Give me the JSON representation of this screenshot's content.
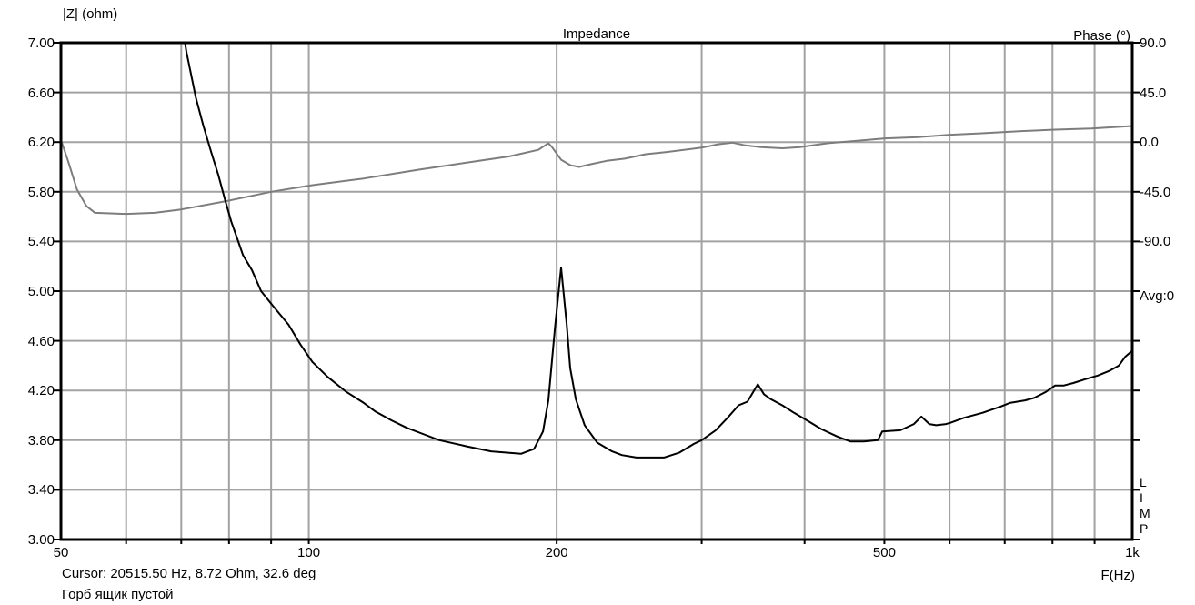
{
  "chart_data": {
    "type": "line",
    "title": "Impedance",
    "left_axis": {
      "label": "|Z| (ohm)",
      "min": 3.0,
      "max": 7.0,
      "tick_step": 0.4,
      "ticks": [
        "7.00",
        "6.60",
        "6.20",
        "5.80",
        "5.40",
        "5.00",
        "4.60",
        "4.20",
        "3.80",
        "3.40",
        "3.00"
      ]
    },
    "right_axis": {
      "label": "Phase (°)",
      "ticks": [
        "90.0",
        "45.0",
        "0.0",
        "-45.0",
        "-90.0"
      ],
      "deg_per_division": 45,
      "zero_deg_at_ohm": 6.2,
      "avg_label": "Avg:0"
    },
    "x_axis": {
      "label": "F(Hz)",
      "scale": "log",
      "min_hz": 50,
      "max_hz": 1000,
      "tick_labels": [
        {
          "hz": 50,
          "text": "50"
        },
        {
          "hz": 100,
          "text": "100"
        },
        {
          "hz": 200,
          "text": "200"
        },
        {
          "hz": 500,
          "text": "500"
        },
        {
          "hz": 1000,
          "text": "1k"
        }
      ],
      "gridline_hz": [
        60,
        70,
        80,
        90,
        100,
        200,
        300,
        400,
        500,
        600,
        700,
        800,
        900
      ]
    },
    "series": [
      {
        "name": "impedance_magnitude_ohm",
        "units": "ohm",
        "color": "#000000",
        "points": [
          [
            70.3,
            7.12
          ],
          [
            71,
            6.93
          ],
          [
            72.9,
            6.56
          ],
          [
            74.4,
            6.34
          ],
          [
            76.1,
            6.12
          ],
          [
            77.7,
            5.93
          ],
          [
            79,
            5.75
          ],
          [
            80.5,
            5.56
          ],
          [
            82,
            5.41
          ],
          [
            83.2,
            5.29
          ],
          [
            85.3,
            5.17
          ],
          [
            87.5,
            5.0
          ],
          [
            90.5,
            4.88
          ],
          [
            94.5,
            4.73
          ],
          [
            97.7,
            4.57
          ],
          [
            101,
            4.43
          ],
          [
            105.4,
            4.31
          ],
          [
            111,
            4.19
          ],
          [
            116.6,
            4.1
          ],
          [
            120.5,
            4.03
          ],
          [
            126,
            3.96
          ],
          [
            131.5,
            3.9
          ],
          [
            137.6,
            3.85
          ],
          [
            144,
            3.8
          ],
          [
            155.5,
            3.75
          ],
          [
            166.5,
            3.71
          ],
          [
            181,
            3.69
          ],
          [
            187.7,
            3.73
          ],
          [
            192.5,
            3.87
          ],
          [
            195.4,
            4.12
          ],
          [
            199,
            4.7
          ],
          [
            202.5,
            5.19
          ],
          [
            205.7,
            4.73
          ],
          [
            207.7,
            4.38
          ],
          [
            211,
            4.13
          ],
          [
            216.3,
            3.92
          ],
          [
            224,
            3.78
          ],
          [
            233.5,
            3.71
          ],
          [
            240,
            3.68
          ],
          [
            250,
            3.66
          ],
          [
            270,
            3.66
          ],
          [
            282,
            3.7
          ],
          [
            293.5,
            3.77
          ],
          [
            300,
            3.8
          ],
          [
            312,
            3.88
          ],
          [
            322.6,
            3.98
          ],
          [
            332.5,
            4.08
          ],
          [
            341,
            4.11
          ],
          [
            351,
            4.25
          ],
          [
            357,
            4.17
          ],
          [
            364,
            4.13
          ],
          [
            376,
            4.08
          ],
          [
            388.5,
            4.02
          ],
          [
            402.6,
            3.96
          ],
          [
            419,
            3.89
          ],
          [
            438,
            3.83
          ],
          [
            454.5,
            3.79
          ],
          [
            472,
            3.79
          ],
          [
            491,
            3.8
          ],
          [
            497,
            3.87
          ],
          [
            523,
            3.88
          ],
          [
            543,
            3.93
          ],
          [
            554.5,
            3.99
          ],
          [
            567,
            3.93
          ],
          [
            578,
            3.92
          ],
          [
            594,
            3.93
          ],
          [
            601.5,
            3.94
          ],
          [
            625,
            3.98
          ],
          [
            657.5,
            4.02
          ],
          [
            692,
            4.07
          ],
          [
            710,
            4.1
          ],
          [
            741,
            4.12
          ],
          [
            760,
            4.14
          ],
          [
            786,
            4.19
          ],
          [
            806,
            4.24
          ],
          [
            826,
            4.24
          ],
          [
            848,
            4.26
          ],
          [
            876,
            4.29
          ],
          [
            908,
            4.32
          ],
          [
            939,
            4.36
          ],
          [
            963,
            4.4
          ],
          [
            980,
            4.47
          ],
          [
            1000,
            4.52
          ]
        ]
      },
      {
        "name": "phase_deg",
        "units": "deg",
        "color": "#7d7d7d",
        "points": [
          [
            50,
            2
          ],
          [
            51,
            -17
          ],
          [
            52.3,
            -43
          ],
          [
            53.7,
            -58
          ],
          [
            55,
            -64
          ],
          [
            60,
            -65
          ],
          [
            65,
            -64
          ],
          [
            70,
            -61
          ],
          [
            80,
            -53
          ],
          [
            90,
            -45
          ],
          [
            101,
            -39
          ],
          [
            116.6,
            -33
          ],
          [
            136,
            -25
          ],
          [
            161,
            -17
          ],
          [
            175,
            -13
          ],
          [
            190,
            -7
          ],
          [
            195.4,
            -1
          ],
          [
            197.4,
            -4.5
          ],
          [
            202.5,
            -16
          ],
          [
            208,
            -21
          ],
          [
            213,
            -22.5
          ],
          [
            220,
            -20
          ],
          [
            230,
            -17
          ],
          [
            242,
            -15
          ],
          [
            256.5,
            -11
          ],
          [
            272,
            -9
          ],
          [
            300,
            -5
          ],
          [
            314,
            -2
          ],
          [
            327,
            -0.5
          ],
          [
            339,
            -3
          ],
          [
            354,
            -4.5
          ],
          [
            376,
            -5.6
          ],
          [
            395,
            -4.5
          ],
          [
            427,
            -1
          ],
          [
            460,
            1
          ],
          [
            501,
            3.4
          ],
          [
            550,
            4.5
          ],
          [
            601,
            6.7
          ],
          [
            657,
            8
          ],
          [
            733,
            10
          ],
          [
            806,
            11.3
          ],
          [
            892,
            12.4
          ],
          [
            1000,
            14.6
          ]
        ]
      }
    ],
    "watermark_letters": "L\nI\nM\nP",
    "grid": true,
    "legend_position": "none"
  },
  "footer": {
    "cursor_readout": "Cursor: 20515.50 Hz, 8.72 Ohm, 32.6 deg",
    "note": "Горб ящик пустой"
  },
  "colors": {
    "background": "#ffffff",
    "frame": "#000000",
    "grid": "#a2a2a2",
    "impedance_curve": "#000000",
    "phase_curve": "#7d7d7d"
  }
}
